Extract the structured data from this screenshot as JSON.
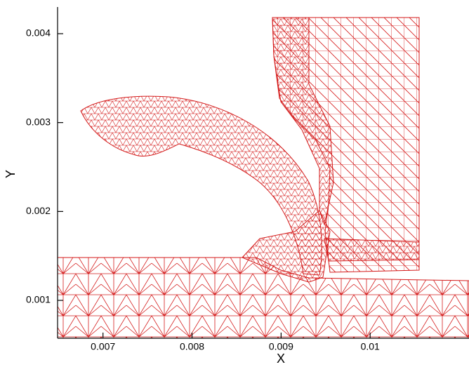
{
  "chart_data": {
    "type": "mesh",
    "x_label": "X",
    "y_label": "Y",
    "xlim": [
      0.00649,
      0.01111
    ],
    "xticks": [
      0.007,
      0.008,
      0.009,
      0.01
    ],
    "ylim": [
      0.000574,
      0.0043
    ],
    "yticks": [
      0.001,
      0.002,
      0.003,
      0.004
    ],
    "color": "#d41a1a"
  }
}
